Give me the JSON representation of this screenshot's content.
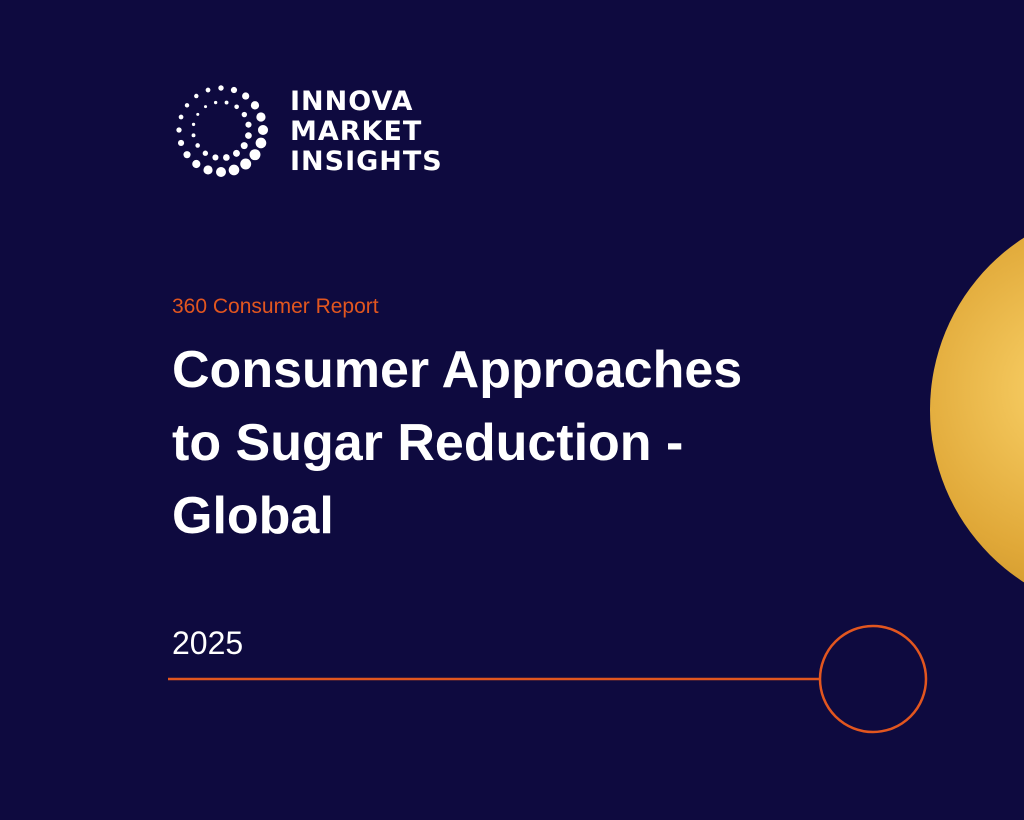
{
  "logo": {
    "lines": [
      "INNOVA",
      "MARKET",
      "INSIGHTS"
    ]
  },
  "report_type": "360 Consumer Report",
  "title_lines": [
    "Consumer Approaches",
    "to Sugar Reduction -",
    "Global"
  ],
  "year": "2025"
}
